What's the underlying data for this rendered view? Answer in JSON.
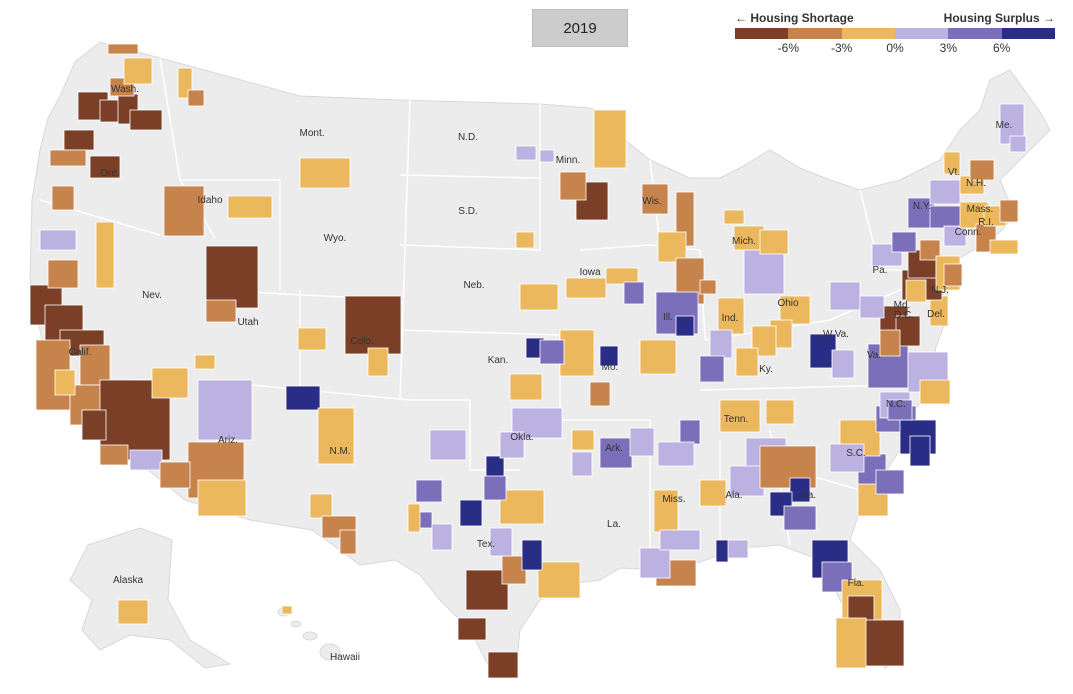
{
  "year": "2019",
  "legend": {
    "left_label": "← Housing Shortage",
    "right_label": "Housing Surplus →",
    "ticks": [
      "-6%",
      "-3%",
      "0%",
      "3%",
      "6%"
    ],
    "colors": [
      "#7b3f28",
      "#c6844c",
      "#ecb85e",
      "#bcb2e2",
      "#7a6fb8",
      "#2a2d86"
    ]
  },
  "map": {
    "land_color": "#ececec",
    "border_color": "#ffffff",
    "states": [
      "Wash.",
      "Ore.",
      "Calif.",
      "Nev.",
      "Idaho",
      "Mont.",
      "Wyo.",
      "Utah",
      "Ariz.",
      "Colo.",
      "N.M.",
      "N.D.",
      "S.D.",
      "Neb.",
      "Kan.",
      "Okla.",
      "Tex.",
      "Minn.",
      "Iowa",
      "Mo.",
      "Ark.",
      "La.",
      "Wis.",
      "Ill.",
      "Mich.",
      "Ind.",
      "Ohio",
      "Ky.",
      "Tenn.",
      "Miss.",
      "Ala.",
      "Ga.",
      "Fla.",
      "S.C.",
      "N.C.",
      "Va.",
      "W.Va.",
      "Pa.",
      "N.Y.",
      "Vt.",
      "N.H.",
      "Me.",
      "Mass.",
      "R.I.",
      "Conn.",
      "N.J.",
      "Del.",
      "Md.",
      "D.C.",
      "Alaska",
      "Hawaii"
    ]
  }
}
